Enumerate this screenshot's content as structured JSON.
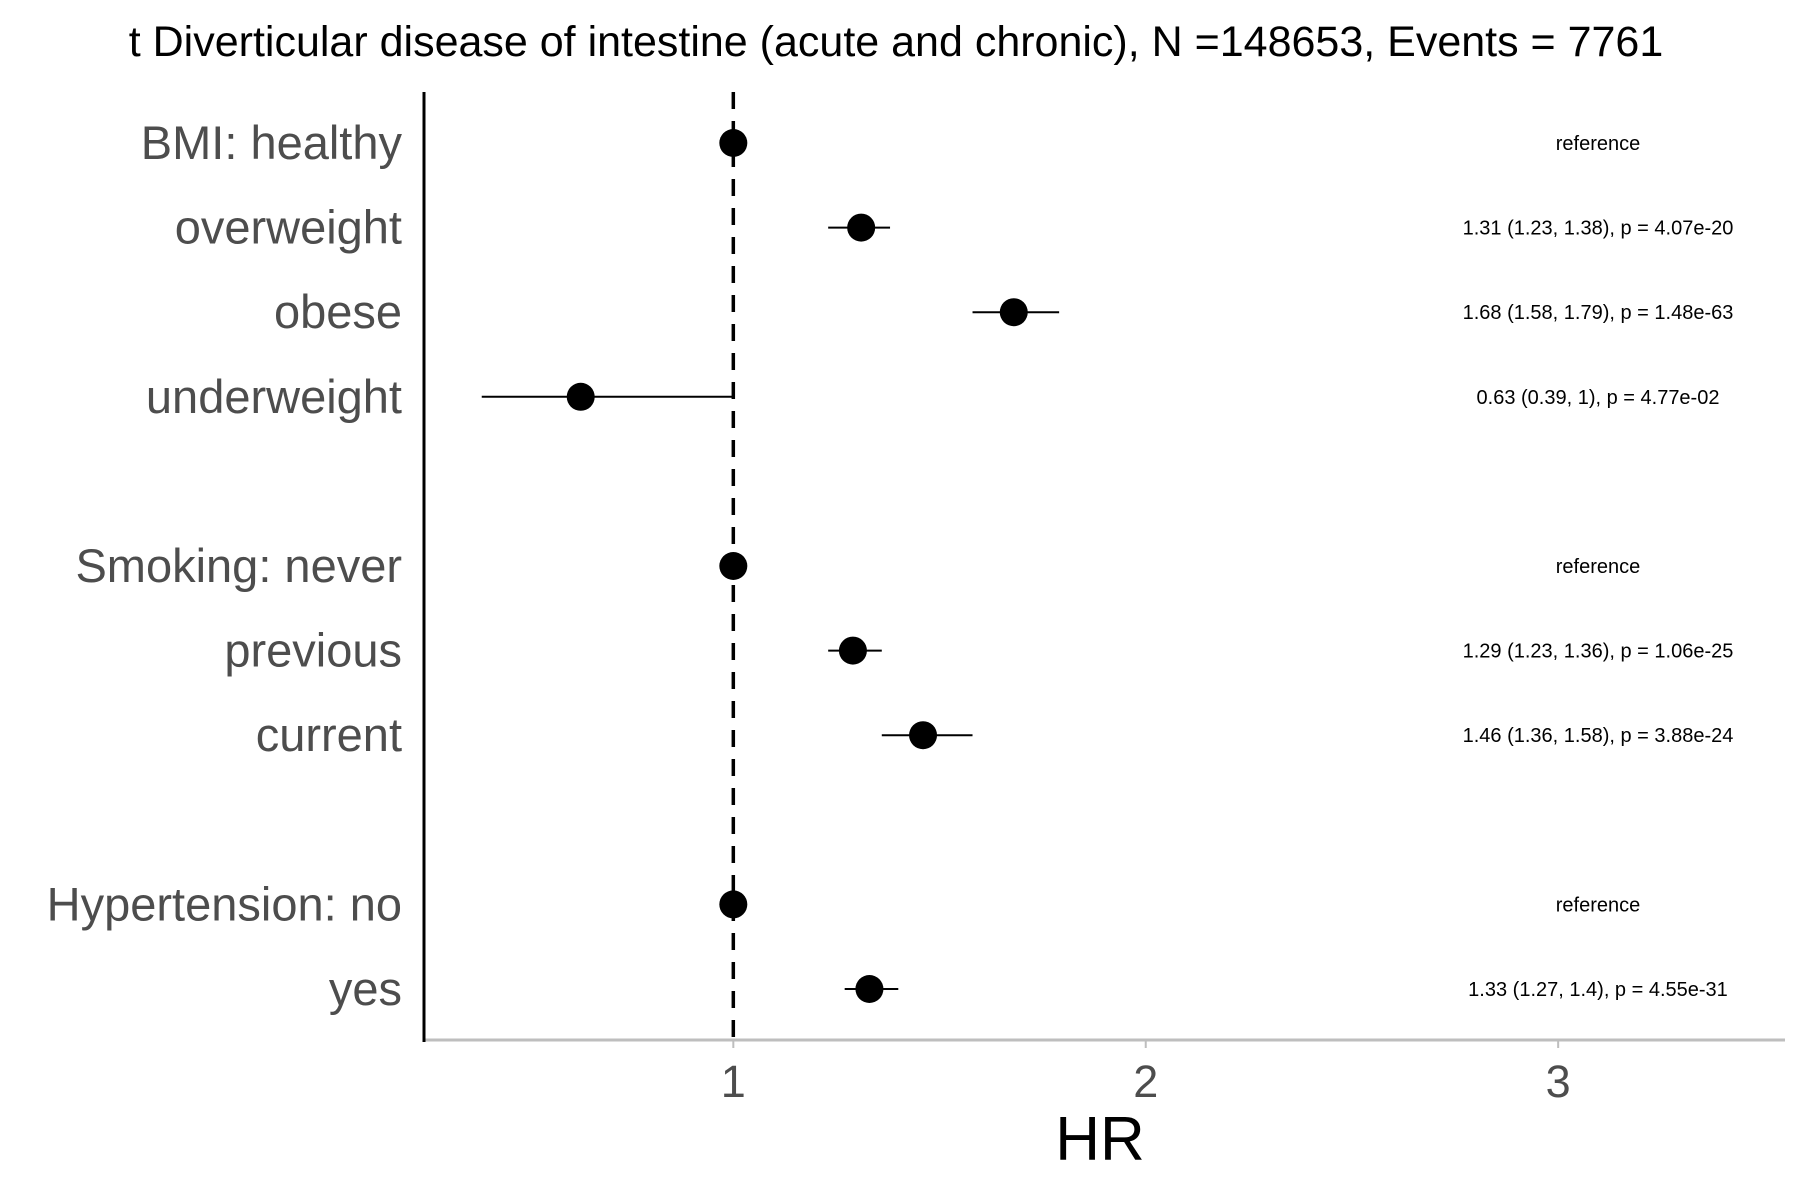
{
  "chart_data": {
    "type": "forest",
    "title": "t Diverticular disease of intestine (acute and chronic), N =148653, Events = 7761",
    "xlabel": "HR",
    "ylabel": "",
    "xlim": [
      0.25,
      3.55
    ],
    "x_ticks": [
      1,
      2,
      3
    ],
    "reference_line": 1,
    "grid": false,
    "colors": {
      "points": "#000000",
      "labels": "#4d4d4d",
      "x_axis": "#bebebe",
      "y_axis": "#000000"
    },
    "groups": [
      {
        "rows": [
          {
            "label": "BMI: healthy",
            "hr": 1,
            "lower": null,
            "upper": null,
            "annotation": "reference"
          },
          {
            "label": "overweight",
            "hr": 1.31,
            "lower": 1.23,
            "upper": 1.38,
            "annotation": "1.31 (1.23, 1.38), p = 4.07e-20"
          },
          {
            "label": "obese",
            "hr": 1.68,
            "lower": 1.58,
            "upper": 1.79,
            "annotation": "1.68 (1.58, 1.79), p = 1.48e-63"
          },
          {
            "label": "underweight",
            "hr": 0.63,
            "lower": 0.39,
            "upper": 1,
            "annotation": "0.63 (0.39, 1), p = 4.77e-02"
          }
        ]
      },
      {
        "rows": [
          {
            "label": "Smoking: never",
            "hr": 1,
            "lower": null,
            "upper": null,
            "annotation": "reference"
          },
          {
            "label": "previous",
            "hr": 1.29,
            "lower": 1.23,
            "upper": 1.36,
            "annotation": "1.29 (1.23, 1.36), p = 1.06e-25"
          },
          {
            "label": "current",
            "hr": 1.46,
            "lower": 1.36,
            "upper": 1.58,
            "annotation": "1.46 (1.36, 1.58), p = 3.88e-24"
          }
        ]
      },
      {
        "rows": [
          {
            "label": "Hypertension: no",
            "hr": 1,
            "lower": null,
            "upper": null,
            "annotation": "reference"
          },
          {
            "label": "yes",
            "hr": 1.33,
            "lower": 1.27,
            "upper": 1.4,
            "annotation": "1.33 (1.27, 1.4), p = 4.55e-31"
          }
        ]
      }
    ]
  }
}
